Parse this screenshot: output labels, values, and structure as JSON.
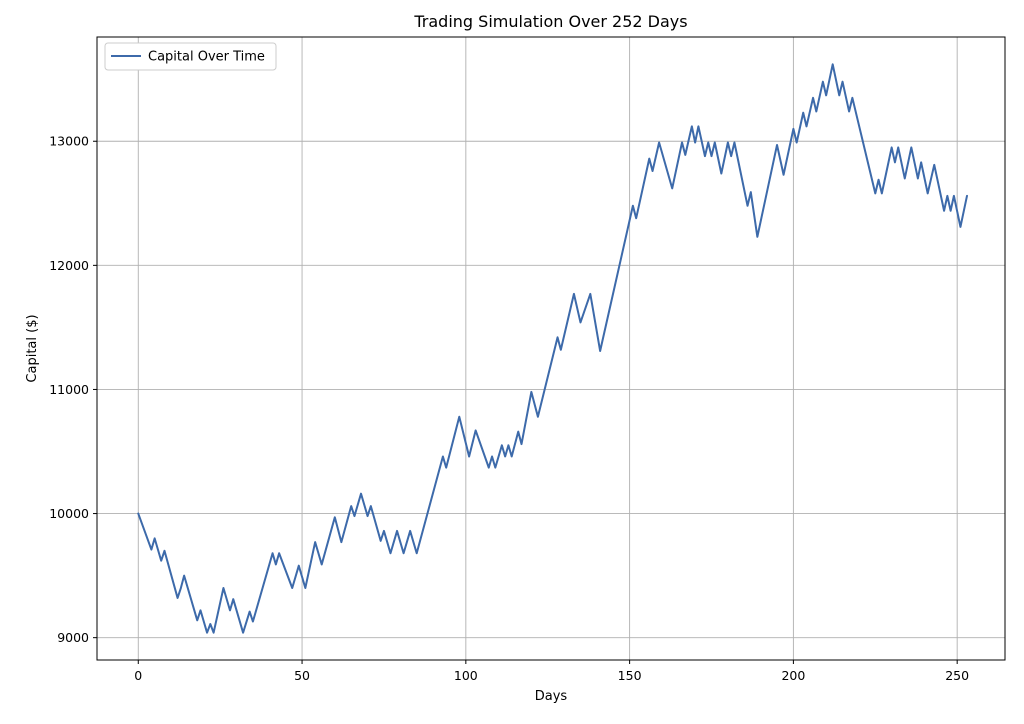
{
  "chart_data": {
    "type": "line",
    "title": "Trading Simulation Over 252 Days",
    "xlabel": "Days",
    "ylabel": "Capital ($)",
    "xlim": [
      -12.6,
      264.6
    ],
    "ylim": [
      8820,
      13840
    ],
    "xticks": [
      0,
      50,
      100,
      150,
      200,
      250
    ],
    "yticks": [
      9000,
      10000,
      11000,
      12000,
      13000
    ],
    "grid": true,
    "legend_position": "top-left",
    "series": [
      {
        "name": "Capital Over Time",
        "color": "#3d6aaa",
        "points": [
          [
            0,
            10000
          ],
          [
            4,
            9710
          ],
          [
            5,
            9800
          ],
          [
            7,
            9620
          ],
          [
            8,
            9700
          ],
          [
            12,
            9320
          ],
          [
            13,
            9400
          ],
          [
            14,
            9500
          ],
          [
            18,
            9140
          ],
          [
            19,
            9220
          ],
          [
            21,
            9040
          ],
          [
            22,
            9110
          ],
          [
            23,
            9040
          ],
          [
            26,
            9400
          ],
          [
            28,
            9220
          ],
          [
            29,
            9310
          ],
          [
            32,
            9040
          ],
          [
            34,
            9210
          ],
          [
            35,
            9130
          ],
          [
            41,
            9680
          ],
          [
            42,
            9590
          ],
          [
            43,
            9680
          ],
          [
            47,
            9400
          ],
          [
            49,
            9580
          ],
          [
            51,
            9400
          ],
          [
            54,
            9770
          ],
          [
            56,
            9590
          ],
          [
            60,
            9970
          ],
          [
            62,
            9770
          ],
          [
            65,
            10060
          ],
          [
            66,
            9980
          ],
          [
            68,
            10160
          ],
          [
            70,
            9980
          ],
          [
            71,
            10060
          ],
          [
            74,
            9780
          ],
          [
            75,
            9860
          ],
          [
            77,
            9680
          ],
          [
            79,
            9860
          ],
          [
            81,
            9680
          ],
          [
            83,
            9860
          ],
          [
            85,
            9680
          ],
          [
            93,
            10460
          ],
          [
            94,
            10370
          ],
          [
            98,
            10780
          ],
          [
            101,
            10460
          ],
          [
            103,
            10670
          ],
          [
            107,
            10370
          ],
          [
            108,
            10460
          ],
          [
            109,
            10370
          ],
          [
            111,
            10550
          ],
          [
            112,
            10460
          ],
          [
            113,
            10550
          ],
          [
            114,
            10460
          ],
          [
            116,
            10660
          ],
          [
            117,
            10560
          ],
          [
            120,
            10980
          ],
          [
            122,
            10780
          ],
          [
            128,
            11420
          ],
          [
            129,
            11320
          ],
          [
            133,
            11770
          ],
          [
            135,
            11540
          ],
          [
            138,
            11770
          ],
          [
            141,
            11310
          ],
          [
            151,
            12480
          ],
          [
            152,
            12380
          ],
          [
            156,
            12860
          ],
          [
            157,
            12760
          ],
          [
            159,
            12990
          ],
          [
            163,
            12620
          ],
          [
            166,
            12990
          ],
          [
            167,
            12890
          ],
          [
            169,
            13120
          ],
          [
            170,
            12990
          ],
          [
            171,
            13120
          ],
          [
            173,
            12880
          ],
          [
            174,
            12990
          ],
          [
            175,
            12880
          ],
          [
            176,
            12990
          ],
          [
            178,
            12740
          ],
          [
            180,
            12990
          ],
          [
            181,
            12880
          ],
          [
            182,
            12990
          ],
          [
            186,
            12480
          ],
          [
            187,
            12590
          ],
          [
            189,
            12230
          ],
          [
            195,
            12970
          ],
          [
            197,
            12730
          ],
          [
            200,
            13100
          ],
          [
            201,
            12990
          ],
          [
            203,
            13230
          ],
          [
            204,
            13120
          ],
          [
            206,
            13350
          ],
          [
            207,
            13240
          ],
          [
            209,
            13480
          ],
          [
            210,
            13370
          ],
          [
            212,
            13620
          ],
          [
            214,
            13370
          ],
          [
            215,
            13480
          ],
          [
            217,
            13240
          ],
          [
            218,
            13350
          ],
          [
            225,
            12580
          ],
          [
            226,
            12690
          ],
          [
            227,
            12580
          ],
          [
            230,
            12950
          ],
          [
            231,
            12830
          ],
          [
            232,
            12950
          ],
          [
            234,
            12700
          ],
          [
            236,
            12950
          ],
          [
            238,
            12700
          ],
          [
            239,
            12830
          ],
          [
            241,
            12580
          ],
          [
            243,
            12810
          ],
          [
            246,
            12440
          ],
          [
            247,
            12560
          ],
          [
            248,
            12440
          ],
          [
            249,
            12560
          ],
          [
            251,
            12310
          ],
          [
            253,
            12560
          ]
        ]
      }
    ]
  }
}
